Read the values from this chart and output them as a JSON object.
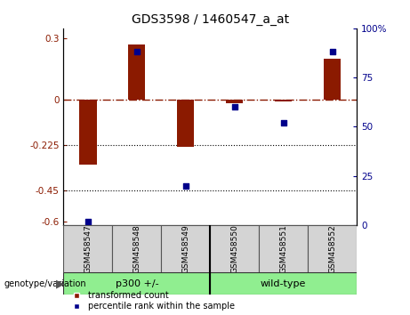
{
  "title": "GDS3598 / 1460547_a_at",
  "samples": [
    "GSM458547",
    "GSM458548",
    "GSM458549",
    "GSM458550",
    "GSM458551",
    "GSM458552"
  ],
  "red_bars": [
    -0.32,
    0.27,
    -0.235,
    -0.02,
    -0.01,
    0.2
  ],
  "blue_dots": [
    2,
    88,
    20,
    60,
    52,
    88
  ],
  "ylim_left": [
    -0.62,
    0.35
  ],
  "ylim_right": [
    0,
    100
  ],
  "yticks_left": [
    0.3,
    0,
    -0.225,
    -0.45,
    -0.6
  ],
  "yticks_right": [
    100,
    75,
    50,
    25,
    0
  ],
  "hline_y": 0,
  "dotted_lines": [
    -0.225,
    -0.45
  ],
  "groups": [
    {
      "label": "p300 +/-",
      "start": 0,
      "end": 3,
      "color": "#90EE90"
    },
    {
      "label": "wild-type",
      "start": 3,
      "end": 6,
      "color": "#90EE90"
    }
  ],
  "group_row_label": "genotype/variation",
  "legend_red_label": "transformed count",
  "legend_blue_label": "percentile rank within the sample",
  "bar_color": "#8B1A00",
  "dot_color": "#00008B",
  "bar_width": 0.35,
  "dot_size": 22,
  "background_color": "#FFFFFF",
  "plot_bg_color": "#FFFFFF"
}
